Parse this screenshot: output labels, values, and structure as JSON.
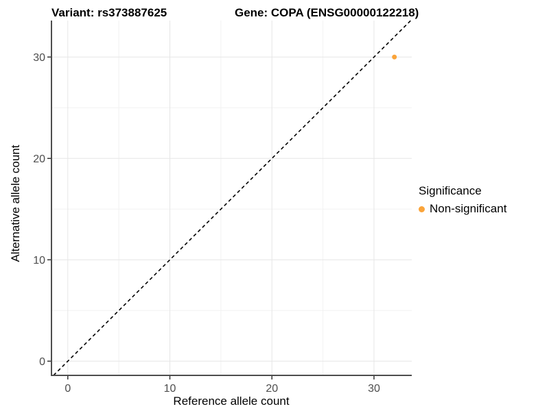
{
  "figure": {
    "title_variant": "Variant: rs373887625",
    "title_gene": "Gene: COPA (ENSG00000122218)"
  },
  "axes": {
    "x": {
      "label": "Reference allele count"
    },
    "y": {
      "label": "Alternative allele count"
    }
  },
  "legend": {
    "title": "Significance",
    "items": [
      {
        "label": "Non-significant",
        "color": "#FAA43A"
      }
    ]
  },
  "colors": {
    "background": "#FFFFFF",
    "grid_major": "#E6E6E6",
    "grid_minor": "#F2F2F2",
    "axis_line": "#4D4D4D",
    "tick": "#333333",
    "tick_label": "#4D4D4D",
    "dashed_line": "#000000",
    "point": "#FAA43A"
  },
  "chart_data": {
    "type": "scatter",
    "title_left": "Variant: rs373887625",
    "title_right": "Gene: COPA (ENSG00000122218)",
    "xlabel": "Reference allele count",
    "ylabel": "Alternative allele count",
    "x_ticks": [
      0,
      10,
      20,
      30
    ],
    "y_ticks": [
      0,
      10,
      20,
      30
    ],
    "x_minor_ticks": [
      5,
      15,
      25
    ],
    "y_minor_ticks": [
      5,
      15,
      25
    ],
    "xlim": [
      -1.6,
      33.7
    ],
    "ylim": [
      -1.4,
      33.6
    ],
    "grid": "major and minor light-gray gridlines on white panel",
    "reference_line": {
      "type": "identity",
      "equation": "y = x",
      "style": "dashed",
      "color": "#000000"
    },
    "series": [
      {
        "name": "Non-significant",
        "color": "#FAA43A",
        "points": [
          {
            "x": 32,
            "y": 30
          }
        ]
      }
    ],
    "legend_title": "Significance",
    "legend_position": "right"
  }
}
